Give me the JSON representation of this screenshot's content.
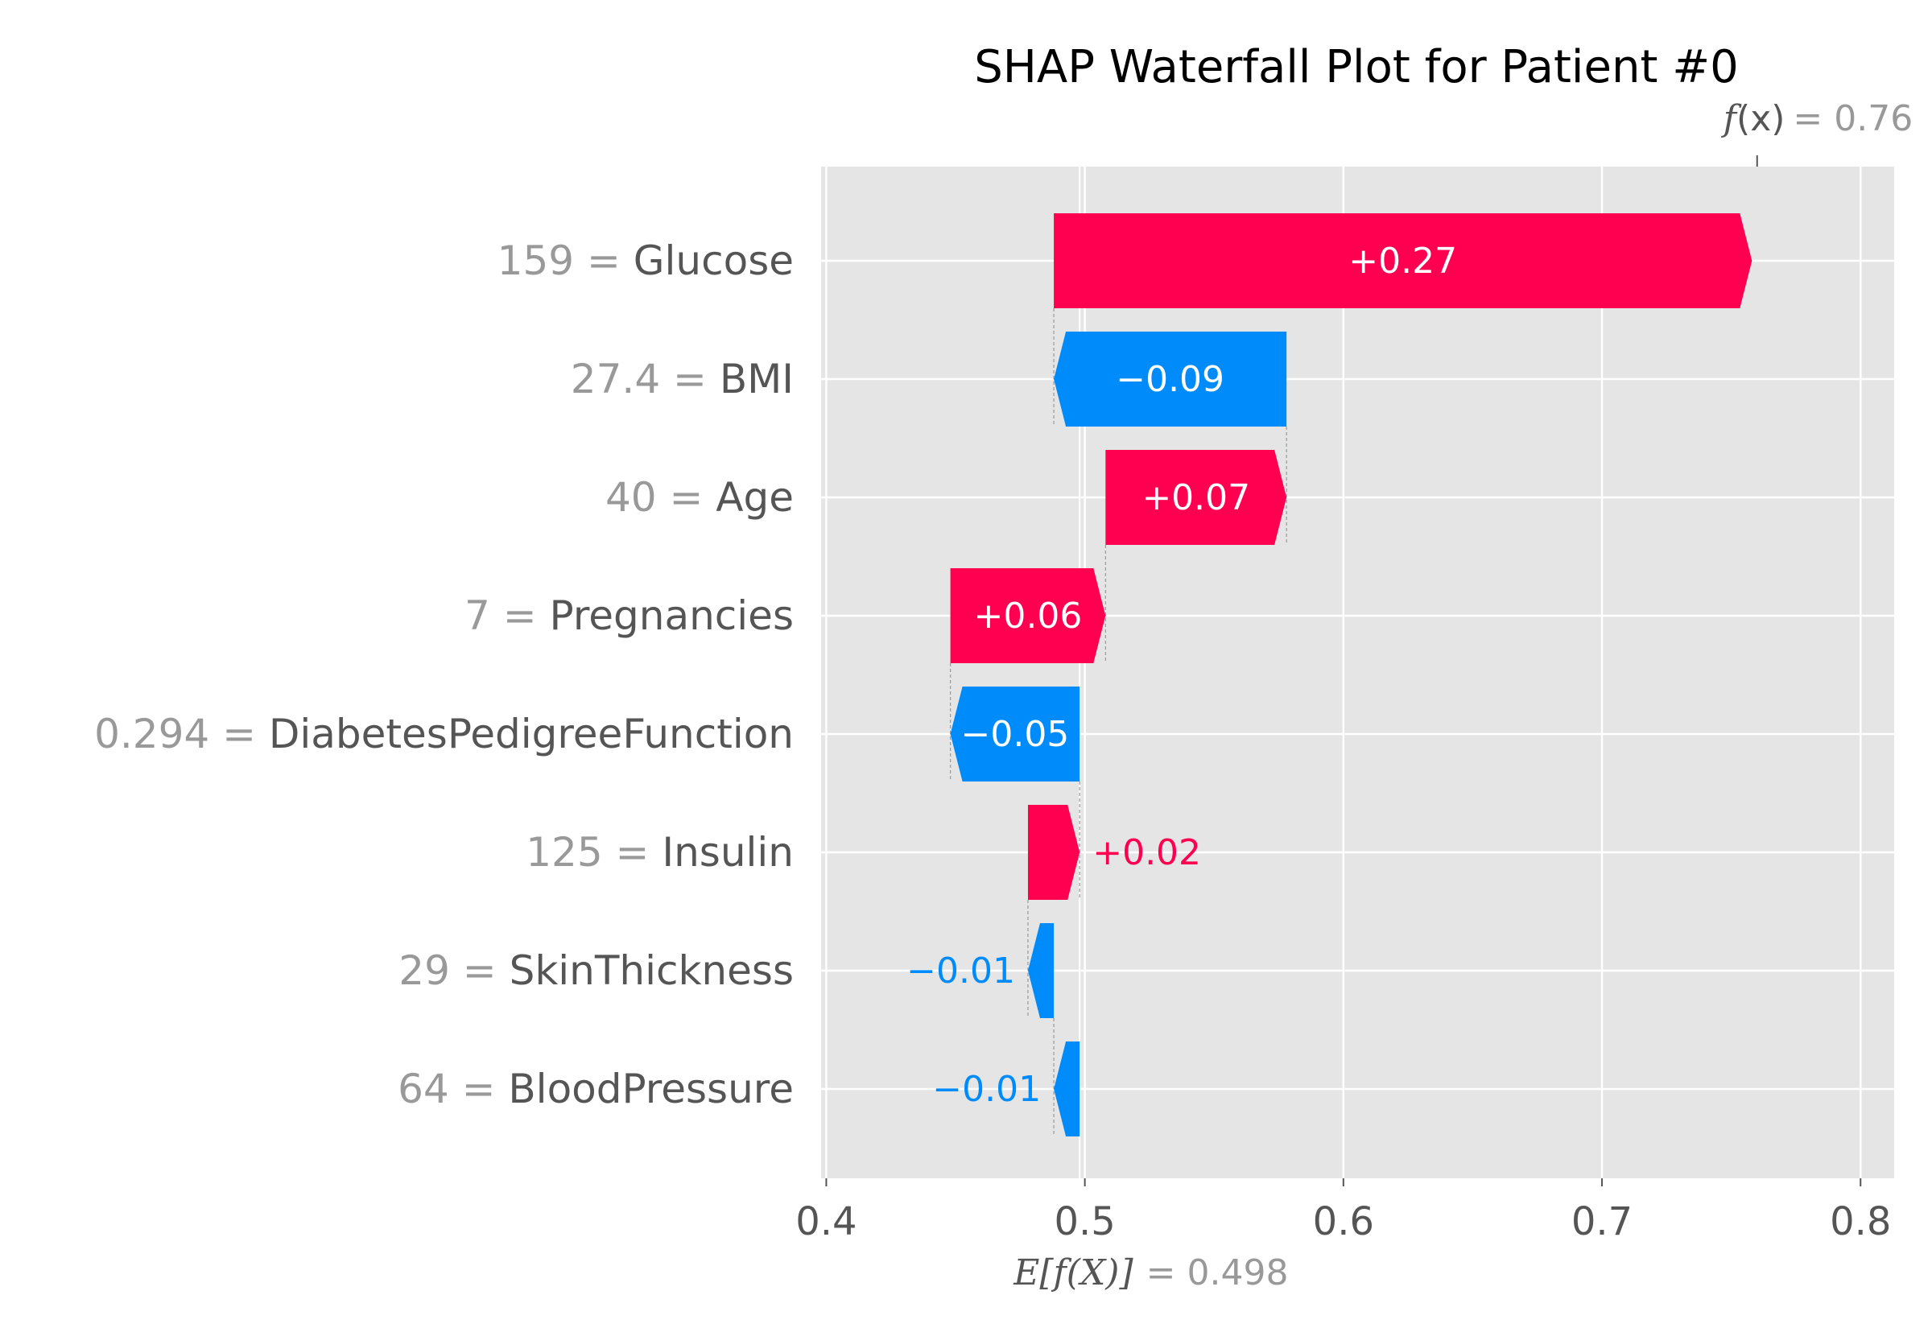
{
  "chart_data": {
    "type": "waterfall",
    "title": "SHAP Waterfall Plot for Patient #0",
    "base_value": {
      "symbol_open": "E[",
      "symbol_fn": "f",
      "symbol_inner": "(X)",
      "symbol_close": "]",
      "text": "= 0.498",
      "value": 0.498
    },
    "output_value": {
      "symbol_fn": "f",
      "symbol_inner": "(x)",
      "text": "= 0.76",
      "value": 0.76
    },
    "features": [
      {
        "value_text": "159",
        "eq": " = ",
        "name": "Glucose",
        "shap": 0.27,
        "label": "+0.27"
      },
      {
        "value_text": "27.4",
        "eq": " = ",
        "name": "BMI",
        "shap": -0.09,
        "label": "−0.09"
      },
      {
        "value_text": "40",
        "eq": " = ",
        "name": "Age",
        "shap": 0.07,
        "label": "+0.07"
      },
      {
        "value_text": "7",
        "eq": " = ",
        "name": "Pregnancies",
        "shap": 0.06,
        "label": "+0.06"
      },
      {
        "value_text": "0.294",
        "eq": " = ",
        "name": "DiabetesPedigreeFunction",
        "shap": -0.05,
        "label": "−0.05"
      },
      {
        "value_text": "125",
        "eq": " = ",
        "name": "Insulin",
        "shap": 0.02,
        "label": "+0.02"
      },
      {
        "value_text": "29",
        "eq": " = ",
        "name": "SkinThickness",
        "shap": -0.01,
        "label": "−0.01"
      },
      {
        "value_text": "64",
        "eq": " = ",
        "name": "BloodPressure",
        "shap": -0.01,
        "label": "−0.01"
      }
    ],
    "xlim": [
      0.398,
      0.813
    ],
    "xticks": [
      0.4,
      0.5,
      0.6,
      0.7,
      0.8
    ],
    "xtick_labels": [
      "0.4",
      "0.5",
      "0.6",
      "0.7",
      "0.8"
    ],
    "grid": true,
    "colors": {
      "positive": "#ff0051",
      "negative": "#008bfb",
      "plot_bg": "#e5e5e5",
      "grid": "#ffffff",
      "feature_name": "#555555",
      "feature_value": "#999999",
      "inside_label": "#ffffff"
    }
  }
}
